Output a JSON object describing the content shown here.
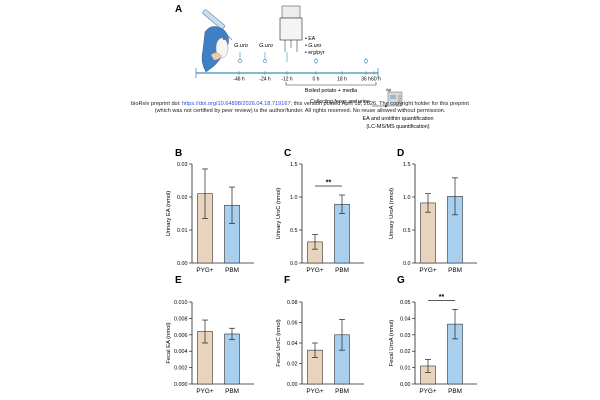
{
  "figure": {
    "panel_a_label": "A",
    "timeline": {
      "ticks": [
        "-48 h",
        "-24 h",
        "-12 h",
        "0 h",
        "18 h",
        "36 h",
        "60 h"
      ],
      "gavage_labels": [
        "G.uro",
        "G.uro"
      ],
      "cage_legend": [
        "EA",
        "G.uro",
        "erg/pyr"
      ],
      "boiled_potato_label": "Boiled potato + media",
      "collecting_label": "Collecting feces and urine",
      "quant_label_line1": "EA and urolithin quantification",
      "quant_label_line2": "(LC-MS/MS quantification)",
      "instrument_label": "Agi"
    },
    "watermark": {
      "prefix": "bioRxiv preprint doi: ",
      "doi": "https://doi.org/10.64898/2026.04.18.719167",
      "line1_rest": "; this version posted April 18, 2026. The copyright holder for this preprint",
      "line2": "(which was not certified by peer review) is the author/funder. All rights reserved. No reuse allowed without permission."
    }
  },
  "chart_data": [
    {
      "panel": "B",
      "type": "bar",
      "ylabel": "Urinary EA (nmol)",
      "categories": [
        "PYG+",
        "PBM"
      ],
      "values": [
        0.021,
        0.0175
      ],
      "errors": [
        0.0075,
        0.0055
      ],
      "ylim": [
        0,
        0.03
      ],
      "yticks": [
        "0.00",
        "0.01",
        "0.02",
        "0.03"
      ],
      "significance": ""
    },
    {
      "panel": "C",
      "type": "bar",
      "ylabel": "Urinary UroC (nmol)",
      "categories": [
        "PYG+",
        "PBM"
      ],
      "values": [
        0.32,
        0.89
      ],
      "errors": [
        0.11,
        0.14
      ],
      "ylim": [
        0,
        1.5
      ],
      "yticks": [
        "0.0",
        "0.5",
        "1.0",
        "1.5"
      ],
      "significance": "**"
    },
    {
      "panel": "D",
      "type": "bar",
      "ylabel": "Urinary UroA (nmol)",
      "categories": [
        "PYG+",
        "PBM"
      ],
      "values": [
        0.91,
        1.01
      ],
      "errors": [
        0.14,
        0.28
      ],
      "ylim": [
        0,
        1.5
      ],
      "yticks": [
        "0.0",
        "0.5",
        "1.0",
        "1.5"
      ],
      "significance": ""
    },
    {
      "panel": "E",
      "type": "bar",
      "ylabel": "Fecal EA (nmol)",
      "categories": [
        "PYG+",
        "PBM"
      ],
      "values": [
        0.0064,
        0.0061
      ],
      "errors": [
        0.0014,
        0.0007
      ],
      "ylim": [
        0,
        0.01
      ],
      "yticks": [
        "0.000",
        "0.002",
        "0.004",
        "0.006",
        "0.008",
        "0.010"
      ],
      "significance": ""
    },
    {
      "panel": "F",
      "type": "bar",
      "ylabel": "Fecal UroC (nmol)",
      "categories": [
        "PYG+",
        "PBM"
      ],
      "values": [
        0.033,
        0.048
      ],
      "errors": [
        0.007,
        0.015
      ],
      "ylim": [
        0,
        0.08
      ],
      "yticks": [
        "0.00",
        "0.02",
        "0.04",
        "0.06",
        "0.08"
      ],
      "significance": ""
    },
    {
      "panel": "G",
      "type": "bar",
      "ylabel": "Fecal UroA (nmol)",
      "categories": [
        "PYG+",
        "PBM"
      ],
      "values": [
        0.011,
        0.0365
      ],
      "errors": [
        0.004,
        0.009
      ],
      "ylim": [
        0,
        0.05
      ],
      "yticks": [
        "0.00",
        "0.01",
        "0.02",
        "0.03",
        "0.04",
        "0.05"
      ],
      "significance": "**"
    }
  ],
  "colors": {
    "pyg_fill": "#e8d3bd",
    "pbm_fill": "#a9cfee",
    "axis": "#222222",
    "timeline_line": "#3a8fb7",
    "link": "#2b4fd6"
  }
}
